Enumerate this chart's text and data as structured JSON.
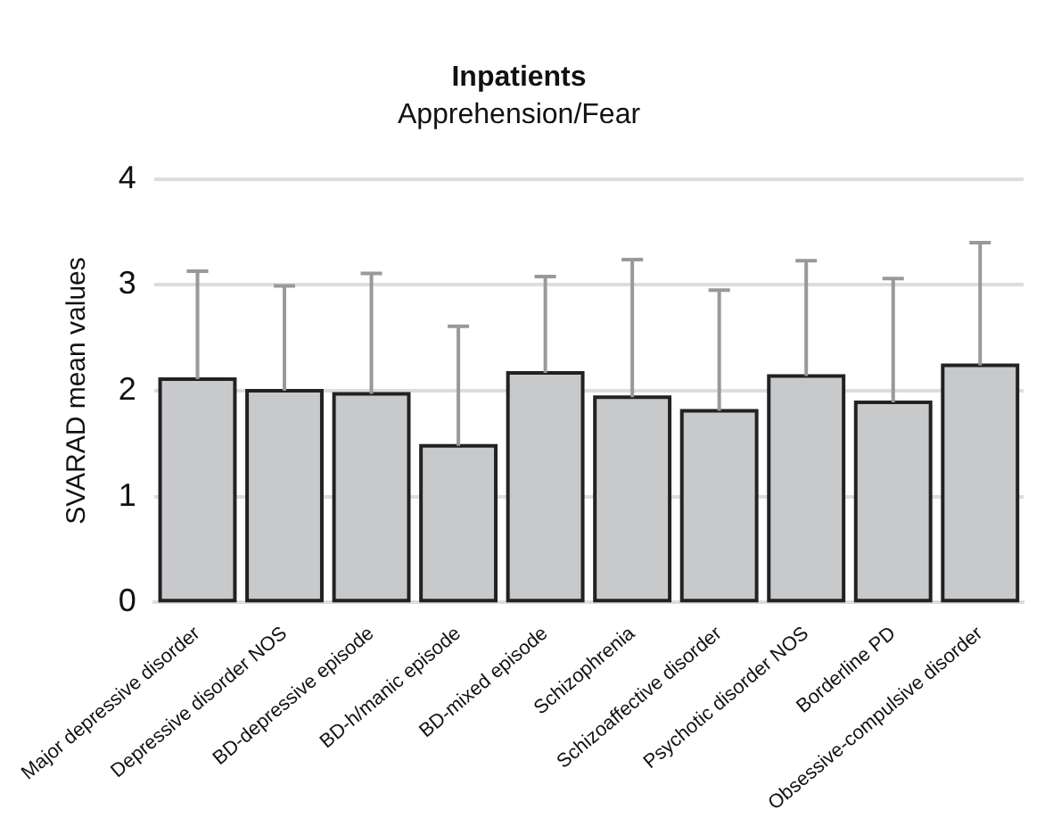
{
  "chart_data": {
    "type": "bar",
    "title": "Inpatients",
    "subtitle": "Apprehension/Fear",
    "ylabel": "SVARAD mean values",
    "categories": [
      "Major depressive disorder",
      "Depressive disorder NOS",
      "BD-depressive episode",
      "BD-h/manic episode",
      "BD-mixed episode",
      "Schizophrenia",
      "Schizoaffective disorder",
      "Psychotic disorder NOS",
      "Borderline PD",
      "Obsessive-compulsive disorder"
    ],
    "values": [
      2.11,
      2.0,
      1.97,
      1.48,
      2.17,
      1.94,
      1.81,
      2.14,
      1.89,
      2.24
    ],
    "errors": [
      [
        2.11,
        3.13
      ],
      [
        2.0,
        2.99
      ],
      [
        1.97,
        3.11
      ],
      [
        1.48,
        2.61
      ],
      [
        2.17,
        3.08
      ],
      [
        1.94,
        3.24
      ],
      [
        1.81,
        2.95
      ],
      [
        2.14,
        3.23
      ],
      [
        1.89,
        3.06
      ],
      [
        2.24,
        3.4
      ]
    ],
    "color": "#c8c9cb",
    "ylim": [
      0,
      4
    ],
    "yticks": [
      0,
      1,
      2,
      3,
      4
    ],
    "grid": "y",
    "legend": false
  }
}
